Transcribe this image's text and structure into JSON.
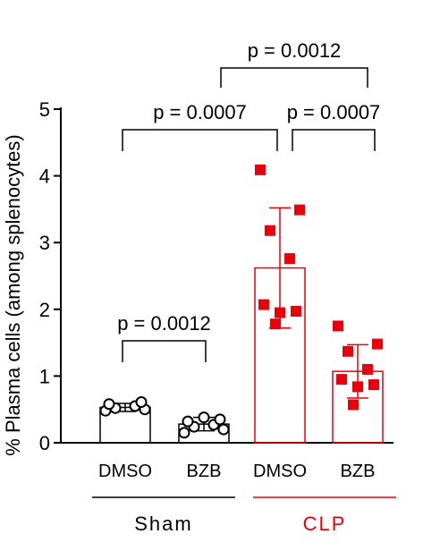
{
  "colors": {
    "sham": "#000000",
    "clp": "#e8000b"
  },
  "chart_data": {
    "type": "bar",
    "ylabel": "% Plasma cells (among splenocytes)",
    "ylim": [
      0,
      5
    ],
    "yticks": [
      0,
      1,
      2,
      3,
      4,
      5
    ],
    "ytick_labels": [
      "0",
      "1",
      "2",
      "3",
      "4",
      "5"
    ],
    "groups": [
      {
        "name": "Sham",
        "color_key": "sham",
        "categories": [
          "DMSO",
          "BZB"
        ]
      },
      {
        "name": "CLP",
        "color_key": "clp",
        "categories": [
          "DMSO",
          "BZB"
        ]
      }
    ],
    "series": [
      {
        "group": 0,
        "category": "DMSO",
        "mean": 0.53,
        "error": 0.06,
        "marker": "open-circle",
        "points": [
          0.48,
          0.5,
          0.52,
          0.55,
          0.58,
          0.61
        ]
      },
      {
        "group": 0,
        "category": "BZB",
        "mean": 0.28,
        "error": 0.1,
        "marker": "open-circle",
        "points": [
          0.15,
          0.2,
          0.24,
          0.27,
          0.32,
          0.35,
          0.38
        ]
      },
      {
        "group": 1,
        "category": "DMSO",
        "mean": 2.62,
        "error": 0.9,
        "marker": "filled-square",
        "points": [
          4.09,
          3.49,
          3.18,
          2.76,
          2.07,
          1.97,
          1.95,
          1.78
        ]
      },
      {
        "group": 1,
        "category": "BZB",
        "mean": 1.07,
        "error": 0.4,
        "marker": "filled-square",
        "points": [
          1.75,
          1.48,
          1.37,
          1.1,
          0.95,
          0.87,
          0.84,
          0.57
        ]
      }
    ],
    "comparisons": [
      {
        "from": 0,
        "to": 1,
        "label": "p = 0.0012",
        "y": 1.55
      },
      {
        "from": 0,
        "to": 2,
        "label": "p = 0.0007",
        "y": 4.75
      },
      {
        "from": 2,
        "to": 3,
        "label": "p = 0.0007",
        "y": 4.75
      },
      {
        "from": 2,
        "to": 3,
        "label": "p = 0.0012",
        "y": 5.95,
        "bracket_top": true
      }
    ]
  }
}
